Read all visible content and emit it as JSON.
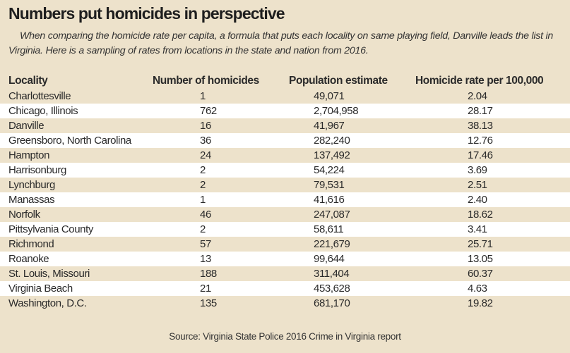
{
  "title": "Numbers put homicides in perspective",
  "subtitle": "When comparing the homicide rate per capita, a formula that puts each locality on same playing field, Danville leads the list in Virginia. Here is a sampling of rates from locations in the state and nation from 2016.",
  "source": "Source: Virginia State Police 2016 Crime in Virginia report",
  "colors": {
    "background": "#ede2cb",
    "alt_row": "#ffffff"
  },
  "chart_data": {
    "type": "table",
    "columns": [
      "Locality",
      "Number of homicides",
      "Population estimate",
      "Homicide rate per 100,000"
    ],
    "rows": [
      [
        "Charlottesville",
        "1",
        "49,071",
        "2.04"
      ],
      [
        "Chicago, Illinois",
        "762",
        "2,704,958",
        "28.17"
      ],
      [
        "Danville",
        "16",
        "41,967",
        "38.13"
      ],
      [
        "Greensboro, North Carolina",
        "36",
        "282,240",
        "12.76"
      ],
      [
        "Hampton",
        "24",
        "137,492",
        "17.46"
      ],
      [
        "Harrisonburg",
        "2",
        "54,224",
        "3.69"
      ],
      [
        "Lynchburg",
        "2",
        "79,531",
        "2.51"
      ],
      [
        "Manassas",
        "1",
        "41,616",
        "2.40"
      ],
      [
        "Norfolk",
        "46",
        "247,087",
        "18.62"
      ],
      [
        "Pittsylvania County",
        "2",
        "58,611",
        "3.41"
      ],
      [
        "Richmond",
        "57",
        "221,679",
        "25.71"
      ],
      [
        "Roanoke",
        "13",
        "99,644",
        "13.05"
      ],
      [
        "St. Louis, Missouri",
        "188",
        "311,404",
        "60.37"
      ],
      [
        "Virginia Beach",
        "21",
        "453,628",
        "4.63"
      ],
      [
        "Washington, D.C.",
        "135",
        "681,170",
        "19.82"
      ]
    ]
  }
}
